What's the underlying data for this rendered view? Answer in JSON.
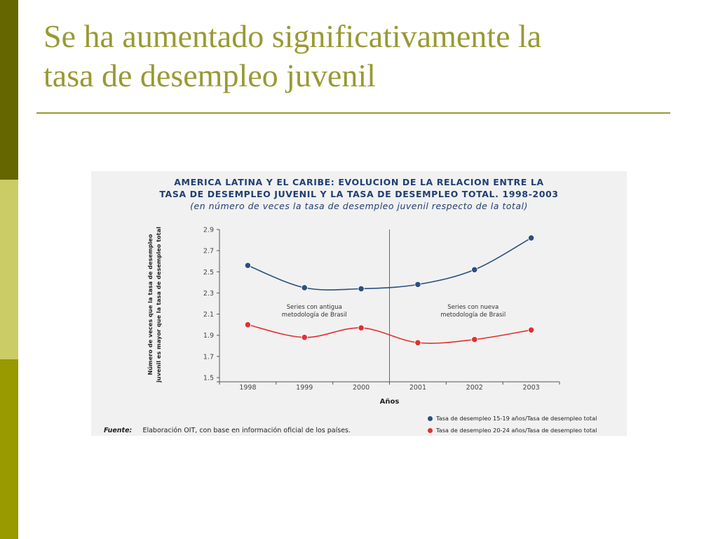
{
  "slide": {
    "title_line1": "Se ha aumentado significativamente la",
    "title_line2": "tasa de desempleo juvenil"
  },
  "colors": {
    "sidebar": [
      "#666600",
      "#cccc66",
      "#999900"
    ],
    "title": "#999933",
    "series_blue": "#2b4f7e",
    "series_red": "#e23030"
  },
  "chart_data": {
    "type": "line",
    "title_line1": "AMERICA LATINA Y EL CARIBE: EVOLUCION DE LA RELACION ENTRE LA",
    "title_line2": "TASA DE DESEMPLEO JUVENIL Y LA TASA DE DESEMPLEO TOTAL. 1998-2003",
    "subtitle": "(en número de veces la tasa de desempleo juvenil respecto de la total)",
    "xlabel": "Años",
    "ylabel_line1": "Número de veces que la tasa de desempleo",
    "ylabel_line2": "juvenil es mayor que la tasa de desempleo total",
    "categories": [
      "1998",
      "1999",
      "2000",
      "2001",
      "2002",
      "2003"
    ],
    "ylim": [
      1.5,
      2.9
    ],
    "yticks": [
      "1.5",
      "1.7",
      "1.9",
      "2.1",
      "2.3",
      "2.5",
      "2.7",
      "2.9"
    ],
    "series": [
      {
        "name": "Tasa de desempleo 15-19 años/Tasa de desempleo total",
        "color": "#2b4f7e",
        "values": [
          2.56,
          2.35,
          2.34,
          2.38,
          2.52,
          2.82
        ]
      },
      {
        "name": "Tasa de desempleo 20-24 años/Tasa de desempleo total",
        "color": "#e23030",
        "values": [
          2.0,
          1.88,
          1.97,
          1.83,
          1.86,
          1.95
        ]
      }
    ],
    "annotations": [
      {
        "line1": "Series con antigua",
        "line2": "metodología de Brasil"
      },
      {
        "line1": "Series con nueva",
        "line2": "metodología de Brasil"
      }
    ],
    "divider_after": "2000",
    "source_label": "Fuente:",
    "source_text": "Elaboración OIT, con base en información oficial de los países.",
    "grid": false
  }
}
